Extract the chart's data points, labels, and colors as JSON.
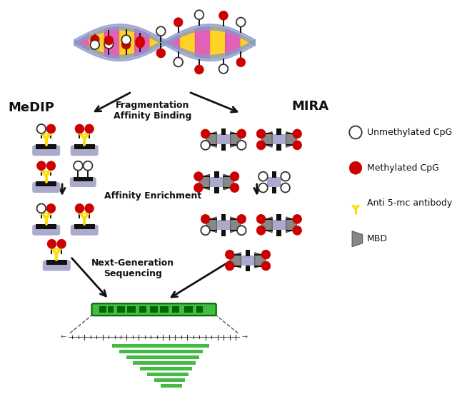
{
  "background_color": "#ffffff",
  "legend_items": [
    {
      "label": "Unmethylated CpG"
    },
    {
      "label": "Methylated CpG"
    },
    {
      "label": "Anti 5-mc antibody"
    },
    {
      "label": "MBD"
    }
  ],
  "labels": {
    "medip": "MeDIP",
    "mira": "MIRA",
    "fragmentation": "Fragmentation\nAffinity Binding",
    "affinity": "Affinity Enrichment",
    "sequencing": "Next-Generation\nSequencing"
  },
  "colors": {
    "unmethylated_face": "#ffffff",
    "unmethylated_edge": "#333333",
    "methylated": "#cc0000",
    "antibody": "#ffdd00",
    "antibody_edge": "#ccaa00",
    "mbd_gray": "#888888",
    "mbd_edge": "#555555",
    "dna_blue": "#8899cc",
    "dna_orange": "#ddaa55",
    "dna_pink": "#dd44aa",
    "dna_yellow": "#ffcc00",
    "stem": "#111111",
    "platform_purple": "#aaaacc",
    "platform_black": "#111111",
    "green_dark": "#006600",
    "green_light": "#44bb44",
    "arrow": "#111111",
    "text": "#111111"
  },
  "figsize": [
    6.61,
    5.59
  ],
  "dpi": 100
}
